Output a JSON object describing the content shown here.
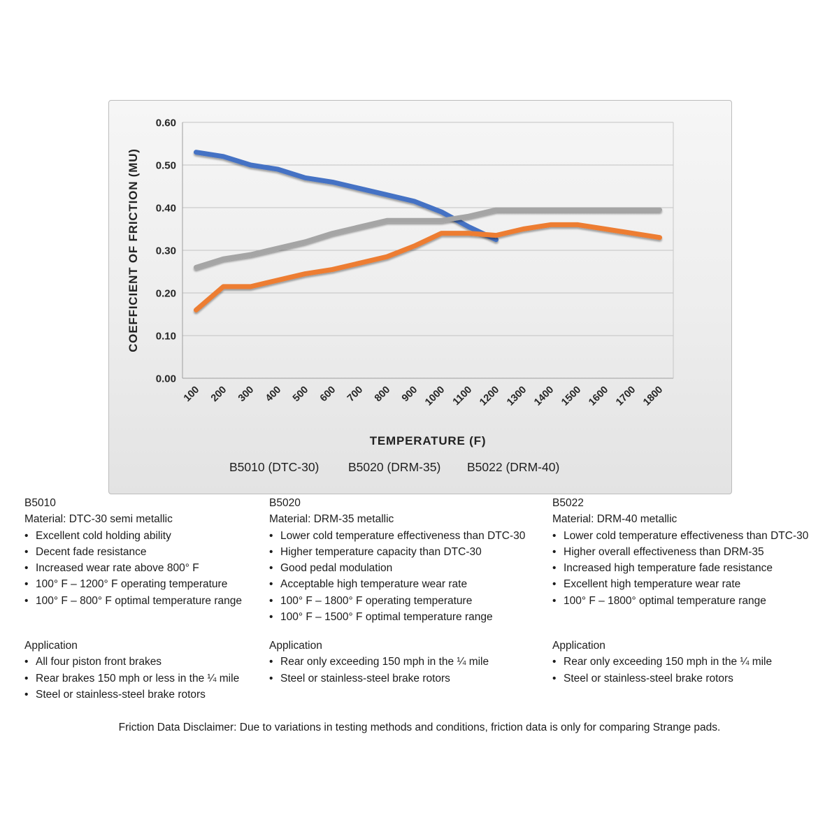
{
  "ui": {
    "bullet": "•"
  },
  "chart_data": {
    "type": "line",
    "title": "",
    "xlabel": "TEMPERATURE (F)",
    "ylabel": "COEFFICIENT OF FRICTION (MU)",
    "categories": [
      100,
      200,
      300,
      400,
      500,
      600,
      700,
      800,
      900,
      1000,
      1100,
      1200,
      1300,
      1400,
      1500,
      1600,
      1700,
      1800
    ],
    "series": [
      {
        "id": "b5010",
        "name": "B5010 (DTC-30)",
        "color": "#4472C4",
        "values": [
          0.53,
          0.52,
          0.5,
          0.49,
          0.47,
          0.46,
          0.445,
          0.43,
          0.415,
          0.39,
          0.355,
          0.325
        ]
      },
      {
        "id": "b5020",
        "name": "B5020 (DRM-35)",
        "color": "#ED7D31",
        "values": [
          0.16,
          0.215,
          0.215,
          0.23,
          0.245,
          0.255,
          0.27,
          0.285,
          0.31,
          0.34,
          0.34,
          0.335,
          0.35,
          0.36,
          0.36,
          0.35,
          0.34,
          0.33
        ]
      },
      {
        "id": "b5022",
        "name": "B5022 (DRM-40)",
        "color": "#A5A5A5",
        "values": [
          0.26,
          0.28,
          0.29,
          0.305,
          0.32,
          0.34,
          0.355,
          0.37,
          0.37,
          0.37,
          0.38,
          0.395,
          0.395,
          0.395,
          0.395,
          0.395,
          0.395,
          0.395
        ]
      }
    ],
    "ylim": [
      0,
      0.6
    ],
    "y_tick_step": 0.1,
    "y_tick_format": "0.00",
    "grid": true,
    "legend_position": "bottom"
  },
  "products": [
    {
      "heading": "B5010",
      "material": "Material: DTC-30 semi metallic",
      "features": [
        "Excellent cold holding ability",
        "Decent fade resistance",
        "Increased wear rate above 800° F",
        "100° F – 1200° F operating temperature",
        "100° F – 800° F optimal temperature range"
      ],
      "application_heading": "Application",
      "applications": [
        "All four piston front brakes",
        "Rear brakes 150 mph or less in the ¼ mile",
        "Steel or stainless-steel brake rotors"
      ]
    },
    {
      "heading": "B5020",
      "material": "Material: DRM-35 metallic",
      "features": [
        "Lower cold temperature effectiveness than DTC-30",
        "Higher temperature capacity than DTC-30",
        "Good pedal modulation",
        "Acceptable high temperature wear rate",
        "100° F – 1800° F operating temperature",
        "100° F – 1500° F optimal temperature range"
      ],
      "application_heading": "Application",
      "applications": [
        "Rear only exceeding 150 mph in the ¼ mile",
        "Steel or stainless-steel brake rotors"
      ]
    },
    {
      "heading": "B5022",
      "material": "Material: DRM-40 metallic",
      "features": [
        "Lower cold temperature effectiveness than DTC-30",
        "Higher overall effectiveness than DRM-35",
        "Increased high temperature fade resistance",
        "Excellent high temperature wear rate",
        "100° F – 1800° optimal temperature range"
      ],
      "application_heading": "Application",
      "applications": [
        "Rear only exceeding 150 mph in the ¼ mile",
        "Steel or stainless-steel brake rotors"
      ]
    }
  ],
  "disclaimer": "Friction Data Disclaimer:  Due to variations in testing methods and conditions, friction data is only for comparing Strange pads."
}
